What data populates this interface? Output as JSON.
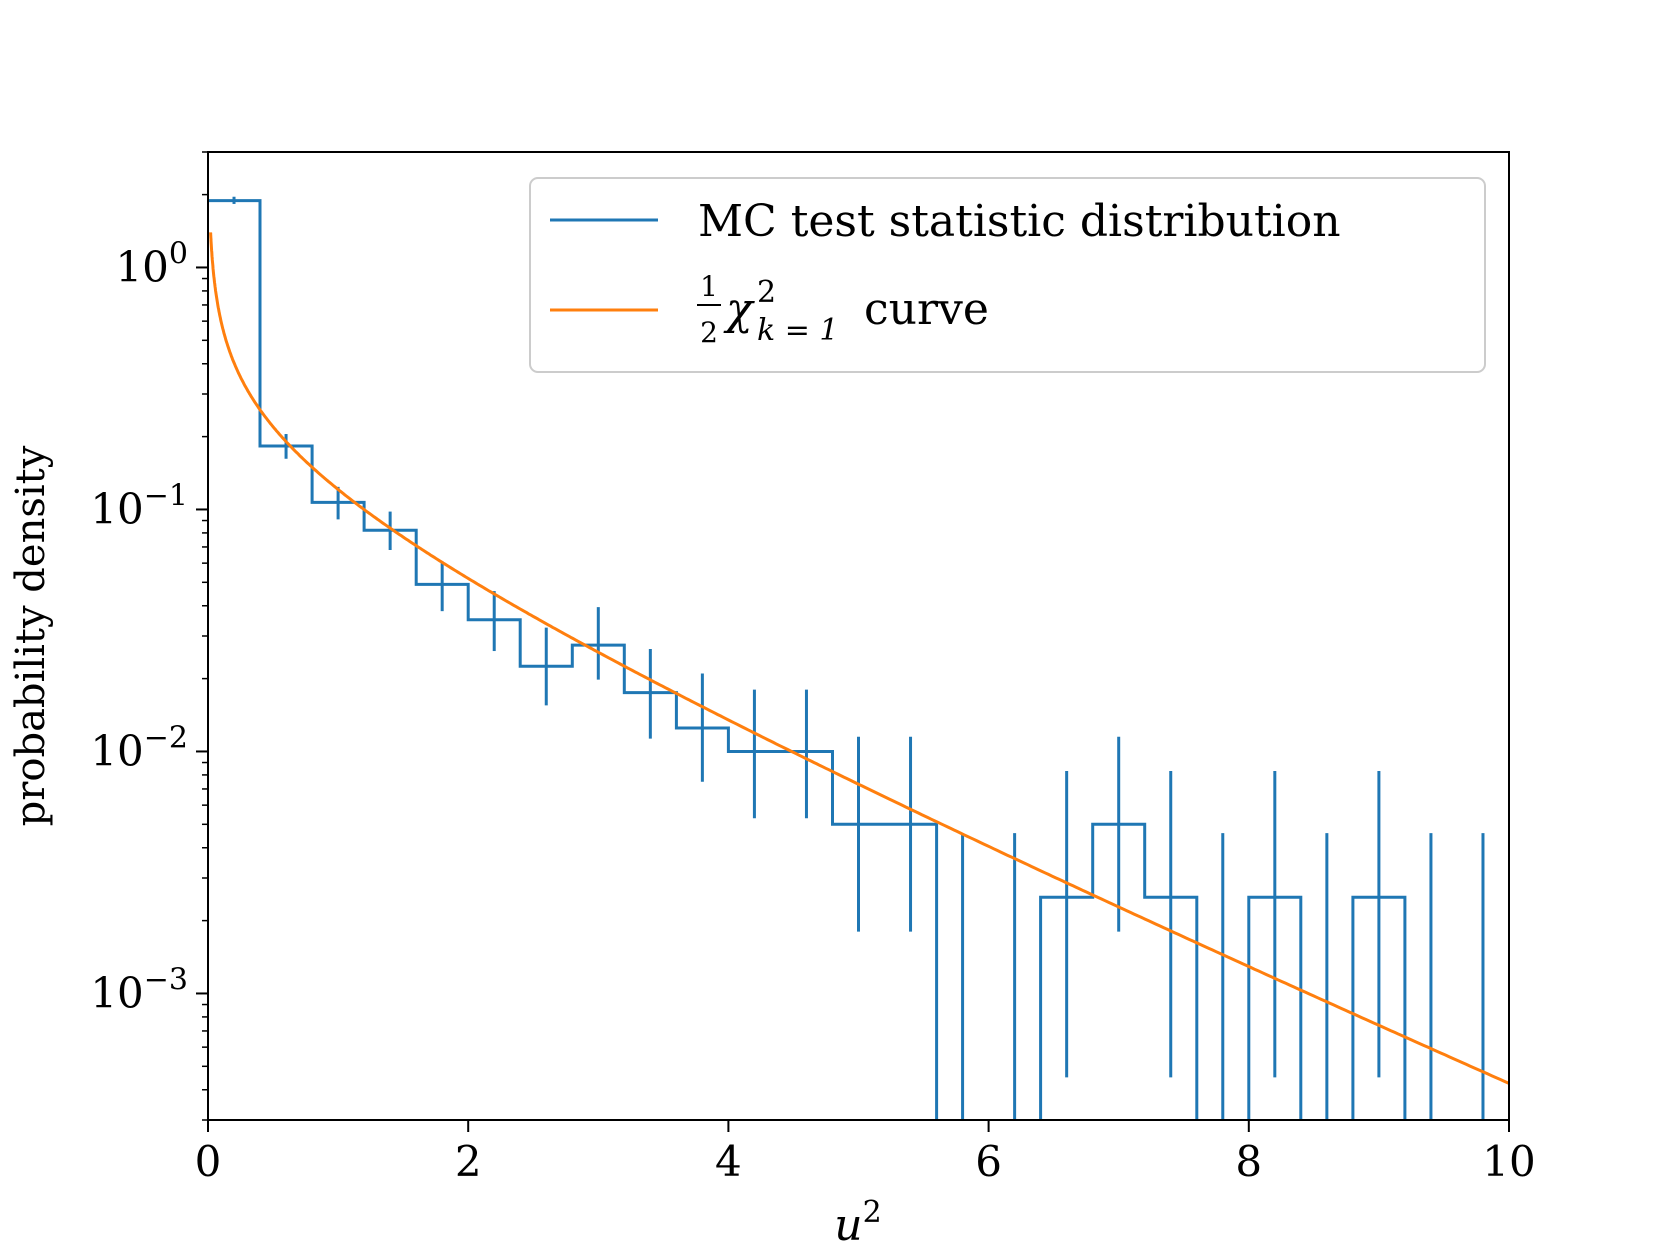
{
  "chart_data": {
    "type": "histogram-step",
    "title": "",
    "xlabel": "u",
    "xlabel_sup": "2",
    "ylabel": "probability density",
    "xlim": [
      0,
      10
    ],
    "ylim": [
      0.0003,
      3.0
    ],
    "yscale": "log",
    "x_ticks": [
      0,
      2,
      4,
      6,
      8,
      10
    ],
    "x_tick_labels": [
      "0",
      "2",
      "4",
      "6",
      "8",
      "10"
    ],
    "y_ticks": [
      1,
      0.1,
      0.01,
      0.001
    ],
    "y_tick_labels": [
      {
        "base": "10",
        "exp": "0"
      },
      {
        "base": "10",
        "exp": "−1"
      },
      {
        "base": "10",
        "exp": "−2"
      },
      {
        "base": "10",
        "exp": "−3"
      }
    ],
    "legend": {
      "position": "upper right",
      "entries": [
        {
          "label": "MC test statistic distribution",
          "color": "#1f77b4"
        },
        {
          "label_frac_num": "1",
          "label_frac_den": "2",
          "label_chi": "χ",
          "label_sup": "2",
          "label_sub": "k = 1",
          "label_suffix": "curve",
          "color": "#ff7f0e"
        }
      ]
    },
    "series": [
      {
        "name": "MC test statistic distribution",
        "kind": "step-histogram",
        "color": "#1f77b4",
        "bin_edges": [
          0,
          0.4,
          0.8,
          1.2,
          1.6,
          2.0,
          2.4,
          2.8,
          3.2,
          3.6,
          4.0,
          4.4,
          4.8,
          5.2,
          5.6,
          6.0,
          6.4,
          6.8,
          7.2,
          7.6,
          8.0,
          8.4,
          8.8,
          9.2,
          9.6,
          10.0
        ],
        "values": [
          1.89,
          0.183,
          0.107,
          0.082,
          0.049,
          0.035,
          0.0225,
          0.0275,
          0.0175,
          0.0125,
          0.01,
          0.01,
          0.005,
          0.005,
          0,
          0,
          0.0025,
          0.005,
          0.0025,
          0,
          0.0025,
          0,
          0.0025,
          0,
          0
        ],
        "errorbars": [
          {
            "x": 0.2,
            "lo": 1.83,
            "hi": 1.96
          },
          {
            "x": 0.6,
            "lo": 0.162,
            "hi": 0.205
          },
          {
            "x": 1.0,
            "lo": 0.091,
            "hi": 0.124
          },
          {
            "x": 1.4,
            "lo": 0.068,
            "hi": 0.098
          },
          {
            "x": 1.8,
            "lo": 0.038,
            "hi": 0.061
          },
          {
            "x": 2.2,
            "lo": 0.026,
            "hi": 0.046
          },
          {
            "x": 2.6,
            "lo": 0.0155,
            "hi": 0.0325
          },
          {
            "x": 3.0,
            "lo": 0.0198,
            "hi": 0.0395
          },
          {
            "x": 3.4,
            "lo": 0.0113,
            "hi": 0.0265
          },
          {
            "x": 3.8,
            "lo": 0.0075,
            "hi": 0.021
          },
          {
            "x": 4.2,
            "lo": 0.0053,
            "hi": 0.018
          },
          {
            "x": 4.6,
            "lo": 0.0053,
            "hi": 0.018
          },
          {
            "x": 5.0,
            "lo": 0.0018,
            "hi": 0.0115
          },
          {
            "x": 5.4,
            "lo": 0.0018,
            "hi": 0.0115
          },
          {
            "x": 5.8,
            "lo": 0.0001,
            "hi": 0.0046
          },
          {
            "x": 6.2,
            "lo": 0.0001,
            "hi": 0.0046
          },
          {
            "x": 6.6,
            "lo": 0.00045,
            "hi": 0.0083
          },
          {
            "x": 7.0,
            "lo": 0.0018,
            "hi": 0.0115
          },
          {
            "x": 7.4,
            "lo": 0.00045,
            "hi": 0.0083
          },
          {
            "x": 7.8,
            "lo": 0.0001,
            "hi": 0.0046
          },
          {
            "x": 8.2,
            "lo": 0.00045,
            "hi": 0.0083
          },
          {
            "x": 8.6,
            "lo": 0.0001,
            "hi": 0.0046
          },
          {
            "x": 9.0,
            "lo": 0.00045,
            "hi": 0.0083
          },
          {
            "x": 9.4,
            "lo": 0.0001,
            "hi": 0.0046
          },
          {
            "x": 9.8,
            "lo": 0.0001,
            "hi": 0.0046
          }
        ]
      },
      {
        "name": "1/2 chi^2 (k=1) curve",
        "kind": "function",
        "color": "#ff7f0e",
        "function": "0.5 * exp(-x/2) / sqrt(2*pi*x)",
        "x_range": [
          0.02,
          10
        ]
      }
    ]
  }
}
